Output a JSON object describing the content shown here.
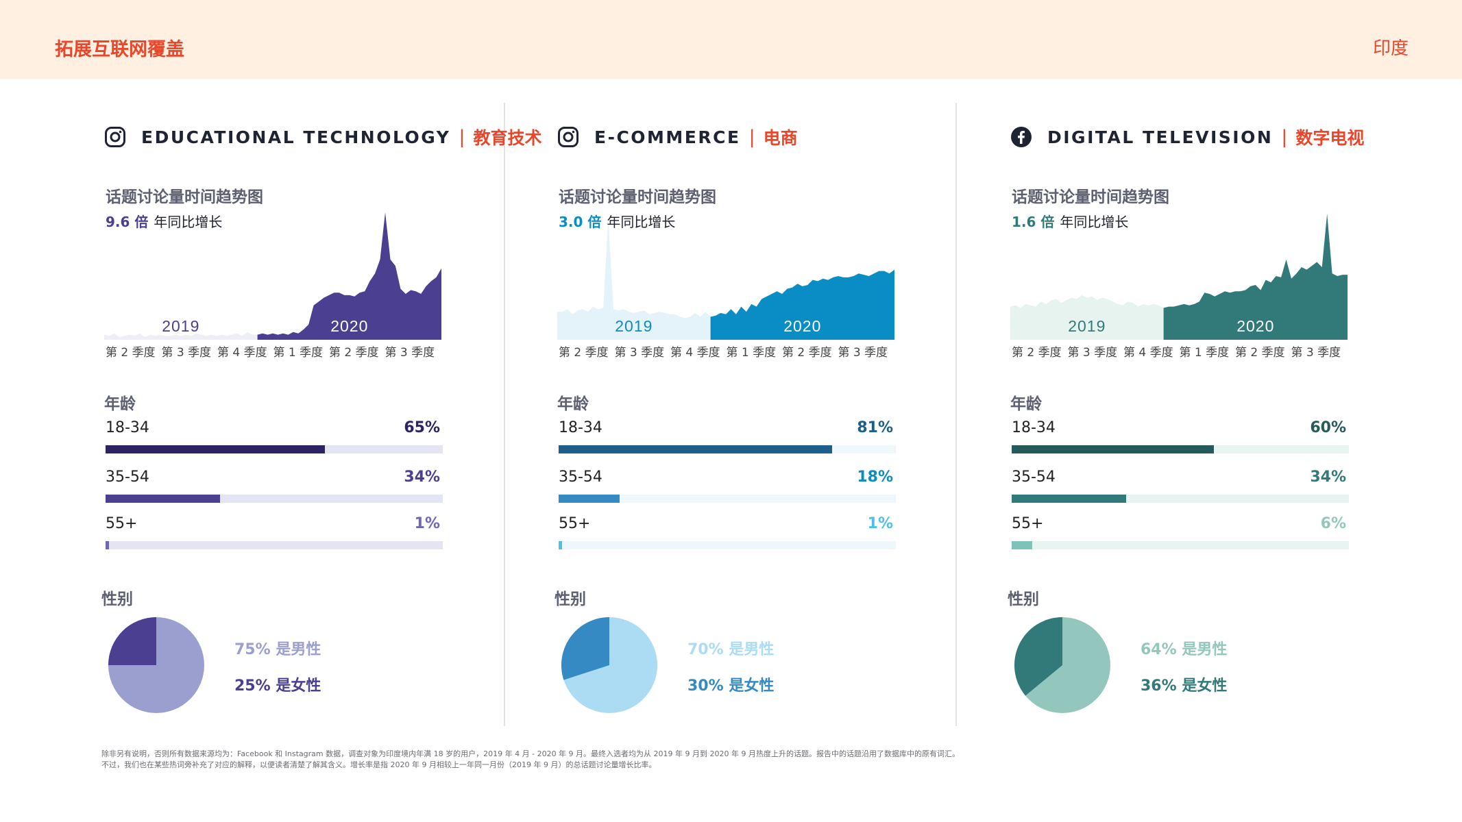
{
  "header": {
    "title": "拓展互联网覆盖",
    "region": "印度"
  },
  "labels": {
    "trend_title": "话题讨论量时间趋势图",
    "growth_suffix": "年同比增长",
    "age_title": "年龄",
    "gender_title": "性别"
  },
  "columns": [
    {
      "platform_icon": "instagram-icon",
      "title_en": "EDUCATIONAL TECHNOLOGY",
      "separator": "|",
      "title_zh": "教育技术",
      "growth_value": "9.6 倍",
      "colors": {
        "accent": "#4a3f91",
        "bar1": "#2c2366",
        "bar2": "#4a3f91",
        "bar3": "#6e66b8",
        "track": "#e4e5f3",
        "area2019": "#eeeef7",
        "area2020": "#4a3f91",
        "year2019": "#4a3f91",
        "year2020": "#ffffff",
        "pie_male": "#9b9fd0",
        "pie_female": "#4a3f91",
        "pct1": "#2c2366",
        "pct2": "#4a3f91",
        "pct3": "#6e66b8"
      },
      "gender": {
        "male_pct": 75,
        "female_pct": 25,
        "male_text": "75% 是男性",
        "female_text": "25% 是女性"
      }
    },
    {
      "platform_icon": "instagram-icon",
      "title_en": "E-COMMERCE",
      "separator": "|",
      "title_zh": "电商",
      "growth_value": "3.0 倍",
      "colors": {
        "accent": "#0a8cc5",
        "bar1": "#1c5f8c",
        "bar2": "#358ac4",
        "bar3": "#4fc1e6",
        "track": "#eef7fc",
        "area2019": "#e4f3fa",
        "area2020": "#0a8cc5",
        "year2019": "#0a8cc5",
        "year2020": "#ffffff",
        "pie_male": "#acdbf4",
        "pie_female": "#358ac4",
        "pct1": "#1c5f8c",
        "pct2": "#0a8cc5",
        "pct3": "#4fc1e6"
      },
      "gender": {
        "male_pct": 70,
        "female_pct": 30,
        "male_text": "70% 是男性",
        "female_text": "30% 是女性"
      }
    },
    {
      "platform_icon": "facebook-icon",
      "title_en": "DIGITAL TELEVISION",
      "separator": "|",
      "title_zh": "数字电视",
      "growth_value": "1.6 倍",
      "colors": {
        "accent": "#327a7a",
        "bar1": "#245a5a",
        "bar2": "#327a7a",
        "bar3": "#7ec3b8",
        "track": "#e8f4f1",
        "area2019": "#e6f3ef",
        "area2020": "#327a7a",
        "year2019": "#327a7a",
        "year2020": "#ffffff",
        "pie_male": "#93c7bd",
        "pie_female": "#327a7a",
        "pct1": "#245a5a",
        "pct2": "#327a7a",
        "pct3": "#93c7bd"
      },
      "gender": {
        "male_pct": 64,
        "female_pct": 36,
        "male_text": "64% 是男性",
        "female_text": "36% 是女性"
      }
    }
  ],
  "chart_data": [
    {
      "type": "area",
      "title": "话题讨论量时间趋势图",
      "subtitle": "9.6 倍 年同比增长",
      "x_tick_labels": [
        "第 2 季度",
        "第 3 季度",
        "第 4 季度",
        "第 1 季度",
        "第 2 季度",
        "第 3 季度"
      ],
      "year_labels": [
        "2019",
        "2020"
      ],
      "split_index": 30,
      "ylim": [
        0,
        100
      ],
      "values": [
        4,
        3,
        5,
        2,
        3,
        4,
        3,
        5,
        2,
        4,
        3,
        4,
        3,
        3,
        4,
        3,
        4,
        3,
        5,
        4,
        3,
        4,
        3,
        4,
        3,
        4,
        5,
        3,
        6,
        4,
        4,
        5,
        4,
        5,
        4,
        5,
        4,
        6,
        5,
        8,
        12,
        27,
        30,
        33,
        35,
        37,
        37,
        35,
        35,
        34,
        37,
        38,
        46,
        52,
        63,
        100,
        63,
        58,
        40,
        36,
        39,
        38,
        36,
        42,
        46,
        49,
        56
      ]
    },
    {
      "type": "area",
      "title": "话题讨论量时间趋势图",
      "subtitle": "3.0 倍 年同比增长",
      "x_tick_labels": [
        "第 2 季度",
        "第 3 季度",
        "第 4 季度",
        "第 1 季度",
        "第 2 季度",
        "第 3 季度"
      ],
      "year_labels": [
        "2019",
        "2020"
      ],
      "split_index": 30,
      "ylim": [
        0,
        100
      ],
      "values": [
        22,
        22,
        24,
        20,
        23,
        24,
        22,
        26,
        24,
        25,
        95,
        24,
        23,
        24,
        22,
        21,
        22,
        23,
        20,
        21,
        22,
        21,
        20,
        20,
        18,
        17,
        18,
        21,
        18,
        22,
        18,
        19,
        21,
        20,
        24,
        20,
        26,
        22,
        28,
        26,
        32,
        34,
        36,
        38,
        36,
        40,
        41,
        44,
        42,
        43,
        47,
        46,
        48,
        47,
        49,
        50,
        49,
        49,
        50,
        52,
        51,
        50,
        52,
        54,
        54,
        52,
        55
      ]
    },
    {
      "type": "area",
      "title": "话题讨论量时间趋势图",
      "subtitle": "1.6 倍 年同比增长",
      "x_tick_labels": [
        "第 2 季度",
        "第 3 季度",
        "第 4 季度",
        "第 1 季度",
        "第 2 季度",
        "第 3 季度"
      ],
      "year_labels": [
        "2019",
        "2020"
      ],
      "split_index": 30,
      "ylim": [
        0,
        100
      ],
      "values": [
        26,
        27,
        25,
        28,
        27,
        26,
        30,
        28,
        31,
        32,
        29,
        31,
        33,
        32,
        35,
        33,
        34,
        31,
        33,
        32,
        30,
        28,
        27,
        30,
        29,
        26,
        28,
        27,
        28,
        27,
        25,
        26,
        26,
        27,
        28,
        27,
        28,
        30,
        37,
        36,
        34,
        36,
        38,
        37,
        38,
        38,
        39,
        42,
        43,
        39,
        47,
        45,
        50,
        49,
        63,
        48,
        52,
        57,
        55,
        58,
        61,
        57,
        99,
        52,
        50,
        51,
        51
      ]
    }
  ],
  "age_groups": [
    [
      {
        "label": "18-34",
        "value": 65,
        "text": "65%"
      },
      {
        "label": "35-54",
        "value": 34,
        "text": "34%"
      },
      {
        "label": "55+",
        "value": 1,
        "text": "1%"
      }
    ],
    [
      {
        "label": "18-34",
        "value": 81,
        "text": "81%"
      },
      {
        "label": "35-54",
        "value": 18,
        "text": "18%"
      },
      {
        "label": "55+",
        "value": 1,
        "text": "1%"
      }
    ],
    [
      {
        "label": "18-34",
        "value": 60,
        "text": "60%"
      },
      {
        "label": "35-54",
        "value": 34,
        "text": "34%"
      },
      {
        "label": "55+",
        "value": 6,
        "text": "6%"
      }
    ]
  ],
  "footnote": {
    "line1": "除非另有说明，否则所有数据来源均为：Facebook 和 Instagram 数据，调查对象为印度境内年满 18 岁的用户，2019 年 4 月 - 2020 年 9 月。最终入选者均为从 2019 年 9 月到 2020 年 9 月热度上升的话题。报告中的话题沿用了数据库中的原有词汇。",
    "line2": "不过，我们也在某些热词旁补充了对应的解释，以便读者清楚了解其含义。增长率是指 2020 年 9 月相较上一年同一月份（2019 年 9 月）的总话题讨论量增长比率。"
  }
}
